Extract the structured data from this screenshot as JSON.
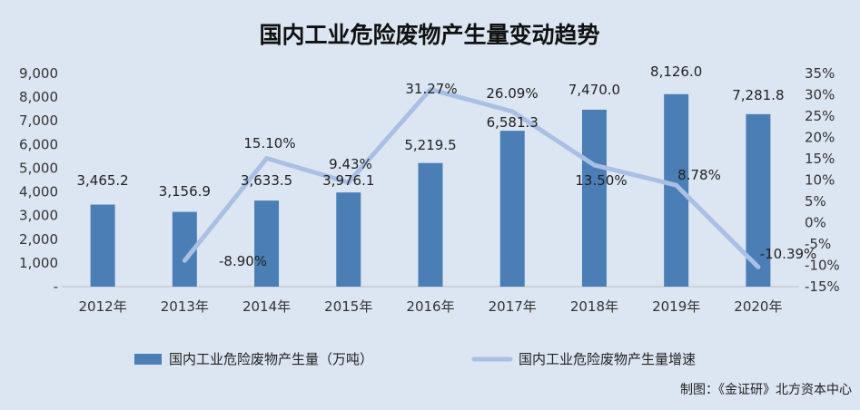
{
  "chart_data": {
    "type": "bar",
    "title": "国内工业危险废物产生量变动趋势",
    "categories": [
      "2012年",
      "2013年",
      "2014年",
      "2015年",
      "2016年",
      "2017年",
      "2018年",
      "2019年",
      "2020年"
    ],
    "series": [
      {
        "name": "国内工业危险废物产生量（万吨）",
        "type": "bar",
        "axis": "left",
        "color": "#4a7eb5",
        "values": [
          3465.2,
          3156.9,
          3633.5,
          3976.1,
          5219.5,
          6581.3,
          7470.0,
          8126.0,
          7281.8
        ],
        "labels": [
          "3,465.2",
          "3,156.9",
          "3,633.5",
          "3,976.1",
          "5,219.5",
          "6,581.3",
          "7,470.0",
          "8,126.0",
          "7,281.8"
        ]
      },
      {
        "name": "国内工业危险废物产生量增速",
        "type": "line",
        "axis": "right",
        "color": "#a9c0e4",
        "values": [
          null,
          -8.9,
          15.1,
          9.43,
          31.27,
          26.09,
          13.5,
          8.78,
          -10.39
        ],
        "labels": [
          "",
          "-8.90%",
          "15.10%",
          "9.43%",
          "31.27%",
          "26.09%",
          "13.50%",
          "8.78%",
          "-10.39%"
        ]
      }
    ],
    "y_left": {
      "ylim": [
        0,
        9000
      ],
      "ticks": [
        "-",
        "1,000",
        "2,000",
        "3,000",
        "4,000",
        "5,000",
        "6,000",
        "7,000",
        "8,000",
        "9,000"
      ]
    },
    "y_right": {
      "ylim": [
        -15,
        35
      ],
      "ticks": [
        "-15%",
        "-10%",
        "-5%",
        "0%",
        "5%",
        "10%",
        "15%",
        "20%",
        "25%",
        "30%",
        "35%"
      ]
    },
    "legend_position": "bottom",
    "grid": false,
    "source": "制图：《金证研》北方资本中心"
  }
}
